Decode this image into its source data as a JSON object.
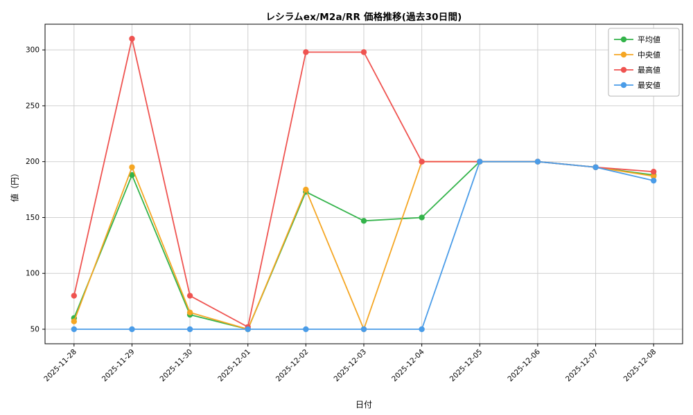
{
  "chart_data": {
    "type": "line",
    "title": "レシラムex/M2a/RR 価格推移(過去30日間)",
    "xlabel": "日付",
    "ylabel": "値（円）",
    "x": [
      "2025-11-28",
      "2025-11-29",
      "2025-11-30",
      "2025-12-01",
      "2025-12-02",
      "2025-12-03",
      "2025-12-04",
      "2025-12-05",
      "2025-12-06",
      "2025-12-07",
      "2025-12-08"
    ],
    "series": [
      {
        "key": "average",
        "name": "平均値",
        "color": "#33b34a",
        "values": [
          60,
          188,
          63,
          50,
          173,
          147,
          150,
          200,
          200,
          195,
          188
        ]
      },
      {
        "key": "median",
        "name": "中央値",
        "color": "#f5a623",
        "values": [
          57,
          195,
          65,
          50,
          175,
          50,
          200,
          200,
          200,
          195,
          187
        ]
      },
      {
        "key": "max",
        "name": "最高値",
        "color": "#ef5350",
        "values": [
          80,
          310,
          80,
          52,
          298,
          298,
          200,
          200,
          200,
          195,
          191
        ]
      },
      {
        "key": "min",
        "name": "最安値",
        "color": "#4a9ce8",
        "values": [
          50,
          50,
          50,
          50,
          50,
          50,
          50,
          200,
          200,
          195,
          183
        ]
      }
    ],
    "yticks": [
      50,
      100,
      150,
      200,
      250,
      300
    ],
    "ylim": [
      37,
      323
    ],
    "grid": true,
    "legend_position": "upper right",
    "marker": "circle"
  }
}
